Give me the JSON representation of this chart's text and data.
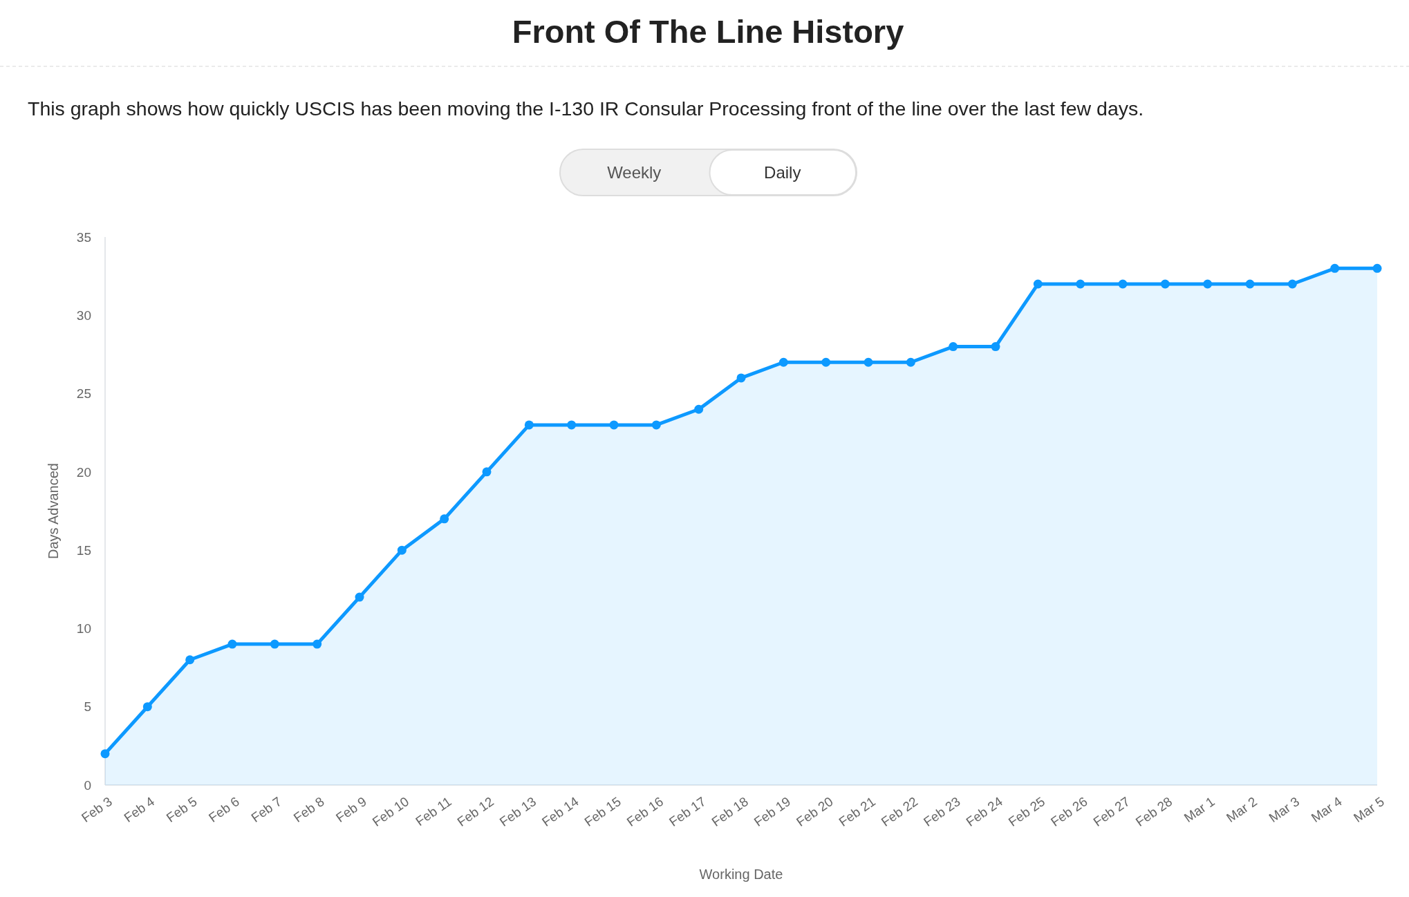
{
  "chart_data": {
    "type": "area",
    "title": "Front Of The Line History",
    "subtitle": "This graph shows how quickly USCIS has been moving the I-130 IR Consular Processing front of the line over the last few days.",
    "annotations": [
      "Weekly",
      "Daily"
    ],
    "xlabel": "Working Date",
    "ylabel": "Days Advanced",
    "categories": [
      "Feb 3",
      "Feb 4",
      "Feb 5",
      "Feb 6",
      "Feb 7",
      "Feb 8",
      "Feb 9",
      "Feb 10",
      "Feb 11",
      "Feb 12",
      "Feb 13",
      "Feb 14",
      "Feb 15",
      "Feb 16",
      "Feb 17",
      "Feb 18",
      "Feb 19",
      "Feb 20",
      "Feb 21",
      "Feb 22",
      "Feb 23",
      "Feb 24",
      "Feb 25",
      "Feb 26",
      "Feb 27",
      "Feb 28",
      "Mar 1",
      "Mar 2",
      "Mar 3",
      "Mar 4",
      "Mar 5"
    ],
    "series": [
      {
        "color": "#0d99ff",
        "values": [
          2,
          5,
          8,
          9,
          9,
          9,
          12,
          15,
          17,
          20,
          23,
          23,
          23,
          23,
          24,
          26,
          27,
          27,
          27,
          27,
          28,
          28,
          32,
          32,
          32,
          32,
          32,
          32,
          32,
          33,
          33
        ]
      }
    ],
    "ylim": [
      0,
      35
    ],
    "yticks": [
      0,
      5,
      10,
      15,
      20,
      25,
      30,
      35
    ],
    "marker": "circle"
  }
}
